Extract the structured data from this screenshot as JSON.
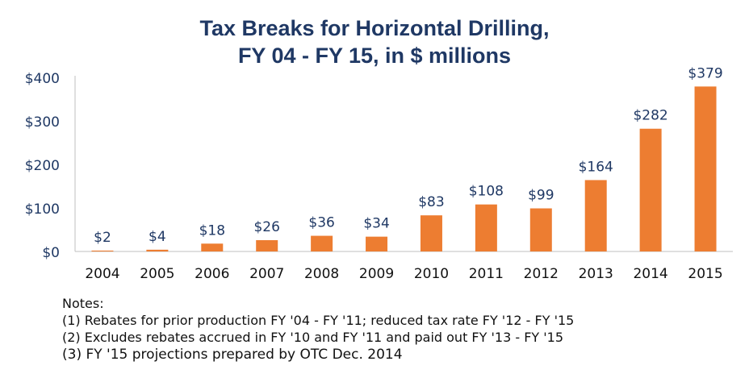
{
  "chart_data": {
    "type": "bar",
    "title": "Tax Breaks for Horizontal Drilling,",
    "subtitle": "FY 04 - FY 15, in $ millions",
    "categories": [
      "2004",
      "2005",
      "2006",
      "2007",
      "2008",
      "2009",
      "2010",
      "2011",
      "2012",
      "2013",
      "2014",
      "2015"
    ],
    "values": [
      2,
      4,
      18,
      26,
      36,
      34,
      83,
      108,
      99,
      164,
      282,
      379
    ],
    "data_labels": [
      "$2",
      "$4",
      "$18",
      "$26",
      "$36",
      "$34",
      "$83",
      "$108",
      "$99",
      "$164",
      "$282",
      "$379"
    ],
    "y_ticks": [
      0,
      100,
      200,
      300,
      400
    ],
    "y_tick_labels": [
      "$0",
      "$100",
      "$200",
      "$300",
      "$400"
    ],
    "ylim": [
      0,
      400
    ],
    "xlabel": "",
    "ylabel": "",
    "grid": false,
    "colors": {
      "bar": "#ed7d31",
      "title": "#1f3864",
      "label": "#1f3864"
    }
  },
  "notes": {
    "heading": "Notes:",
    "items": [
      "(1) Rebates for prior production FY '04 - FY '11; reduced tax rate FY '12 - FY '15",
      "(2) Excludes rebates accrued in FY '10 and FY '11 and paid out FY '13 - FY '15",
      "(3) FY '15 projections prepared by OTC Dec. 2014"
    ]
  }
}
